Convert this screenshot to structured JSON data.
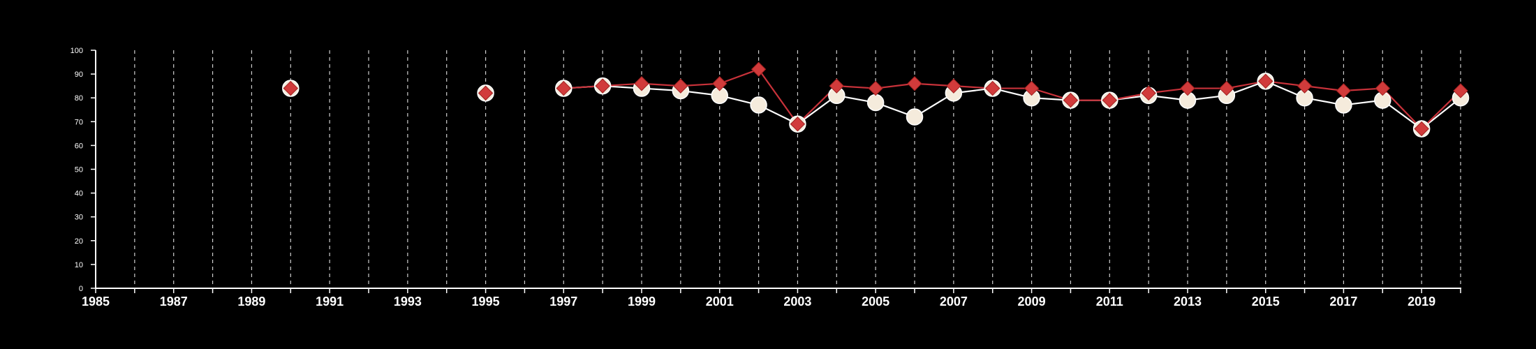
{
  "chart_data": {
    "type": "line",
    "title": "",
    "xlabel": "",
    "ylabel": "",
    "xlim": [
      1985,
      2020
    ],
    "ylim": [
      0,
      100
    ],
    "x_ticks": [
      1985,
      1987,
      1989,
      1991,
      1993,
      1995,
      1997,
      1999,
      2001,
      2003,
      2005,
      2007,
      2009,
      2011,
      2013,
      2015,
      2017,
      2019
    ],
    "y_ticks": [
      0,
      10,
      20,
      30,
      40,
      50,
      60,
      70,
      80,
      90,
      100
    ],
    "grid": "vertical dashed lines at every year",
    "legend": "none",
    "background": "#000000",
    "axis_color": "#ffffff",
    "grid_color": "#cfcfcf",
    "series": [
      {
        "marker": "circle",
        "color": "#ffffff",
        "marker_fill": "#f5ebdc",
        "points": [
          {
            "x": 1990,
            "y": 84
          },
          {
            "x": 1995,
            "y": 82
          },
          {
            "x": 1997,
            "y": 84
          },
          {
            "x": 1998,
            "y": 85
          },
          {
            "x": 1999,
            "y": 84
          },
          {
            "x": 2000,
            "y": 83
          },
          {
            "x": 2001,
            "y": 81
          },
          {
            "x": 2002,
            "y": 77
          },
          {
            "x": 2003,
            "y": 69
          },
          {
            "x": 2004,
            "y": 81
          },
          {
            "x": 2005,
            "y": 78
          },
          {
            "x": 2006,
            "y": 72
          },
          {
            "x": 2007,
            "y": 82
          },
          {
            "x": 2008,
            "y": 84
          },
          {
            "x": 2009,
            "y": 80
          },
          {
            "x": 2010,
            "y": 79
          },
          {
            "x": 2011,
            "y": 79
          },
          {
            "x": 2012,
            "y": 81
          },
          {
            "x": 2013,
            "y": 79
          },
          {
            "x": 2014,
            "y": 81
          },
          {
            "x": 2015,
            "y": 87
          },
          {
            "x": 2016,
            "y": 80
          },
          {
            "x": 2017,
            "y": 77
          },
          {
            "x": 2018,
            "y": 79
          },
          {
            "x": 2019,
            "y": 67
          },
          {
            "x": 2020,
            "y": 80
          }
        ]
      },
      {
        "marker": "diamond",
        "color": "#c8323a",
        "marker_fill": "#d13b3b",
        "points": [
          {
            "x": 1990,
            "y": 84
          },
          {
            "x": 1995,
            "y": 82
          },
          {
            "x": 1997,
            "y": 84
          },
          {
            "x": 1998,
            "y": 85
          },
          {
            "x": 1999,
            "y": 86
          },
          {
            "x": 2000,
            "y": 85
          },
          {
            "x": 2001,
            "y": 86
          },
          {
            "x": 2002,
            "y": 92
          },
          {
            "x": 2003,
            "y": 69
          },
          {
            "x": 2004,
            "y": 85
          },
          {
            "x": 2005,
            "y": 84
          },
          {
            "x": 2006,
            "y": 86
          },
          {
            "x": 2007,
            "y": 85
          },
          {
            "x": 2008,
            "y": 84
          },
          {
            "x": 2009,
            "y": 84
          },
          {
            "x": 2010,
            "y": 79
          },
          {
            "x": 2011,
            "y": 79
          },
          {
            "x": 2012,
            "y": 82
          },
          {
            "x": 2013,
            "y": 84
          },
          {
            "x": 2014,
            "y": 84
          },
          {
            "x": 2015,
            "y": 87
          },
          {
            "x": 2016,
            "y": 85
          },
          {
            "x": 2017,
            "y": 83
          },
          {
            "x": 2018,
            "y": 84
          },
          {
            "x": 2019,
            "y": 67
          },
          {
            "x": 2020,
            "y": 83
          }
        ]
      }
    ]
  }
}
